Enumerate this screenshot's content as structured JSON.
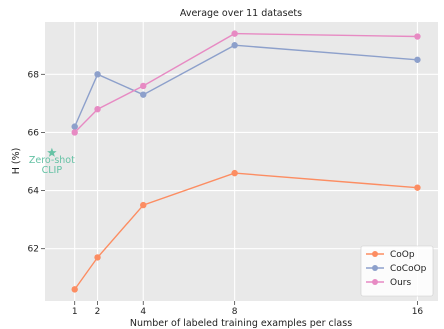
{
  "chart_data": {
    "type": "line",
    "title": "Average over 11 datasets",
    "xlabel": "Number of labeled training examples per class",
    "ylabel": "H (%)",
    "x_ticks": [
      1,
      2,
      4,
      8,
      16
    ],
    "y_ticks": [
      62,
      64,
      66,
      68
    ],
    "xlim": [
      -0.3,
      16.9
    ],
    "ylim": [
      60.2,
      69.8
    ],
    "grid": true,
    "legend_position": "lower-right",
    "series": [
      {
        "name": "CoOp",
        "color": "#fc8d62",
        "x": [
          1,
          2,
          4,
          8,
          16
        ],
        "y": [
          60.6,
          61.7,
          63.5,
          64.6,
          64.1
        ]
      },
      {
        "name": "CoCoOp",
        "color": "#8da0cb",
        "x": [
          1,
          2,
          4,
          8,
          16
        ],
        "y": [
          66.2,
          68.0,
          67.3,
          69.0,
          68.5
        ]
      },
      {
        "name": "Ours",
        "color": "#e78ac3",
        "x": [
          1,
          2,
          4,
          8,
          16
        ],
        "y": [
          66.0,
          66.8,
          67.6,
          69.4,
          69.3
        ]
      }
    ],
    "annotations": [
      {
        "label_lines": [
          "Zero-shot",
          "CLIP"
        ],
        "x": 0.0,
        "y": 65.3,
        "color": "#66c2a5",
        "marker": "star"
      }
    ]
  }
}
